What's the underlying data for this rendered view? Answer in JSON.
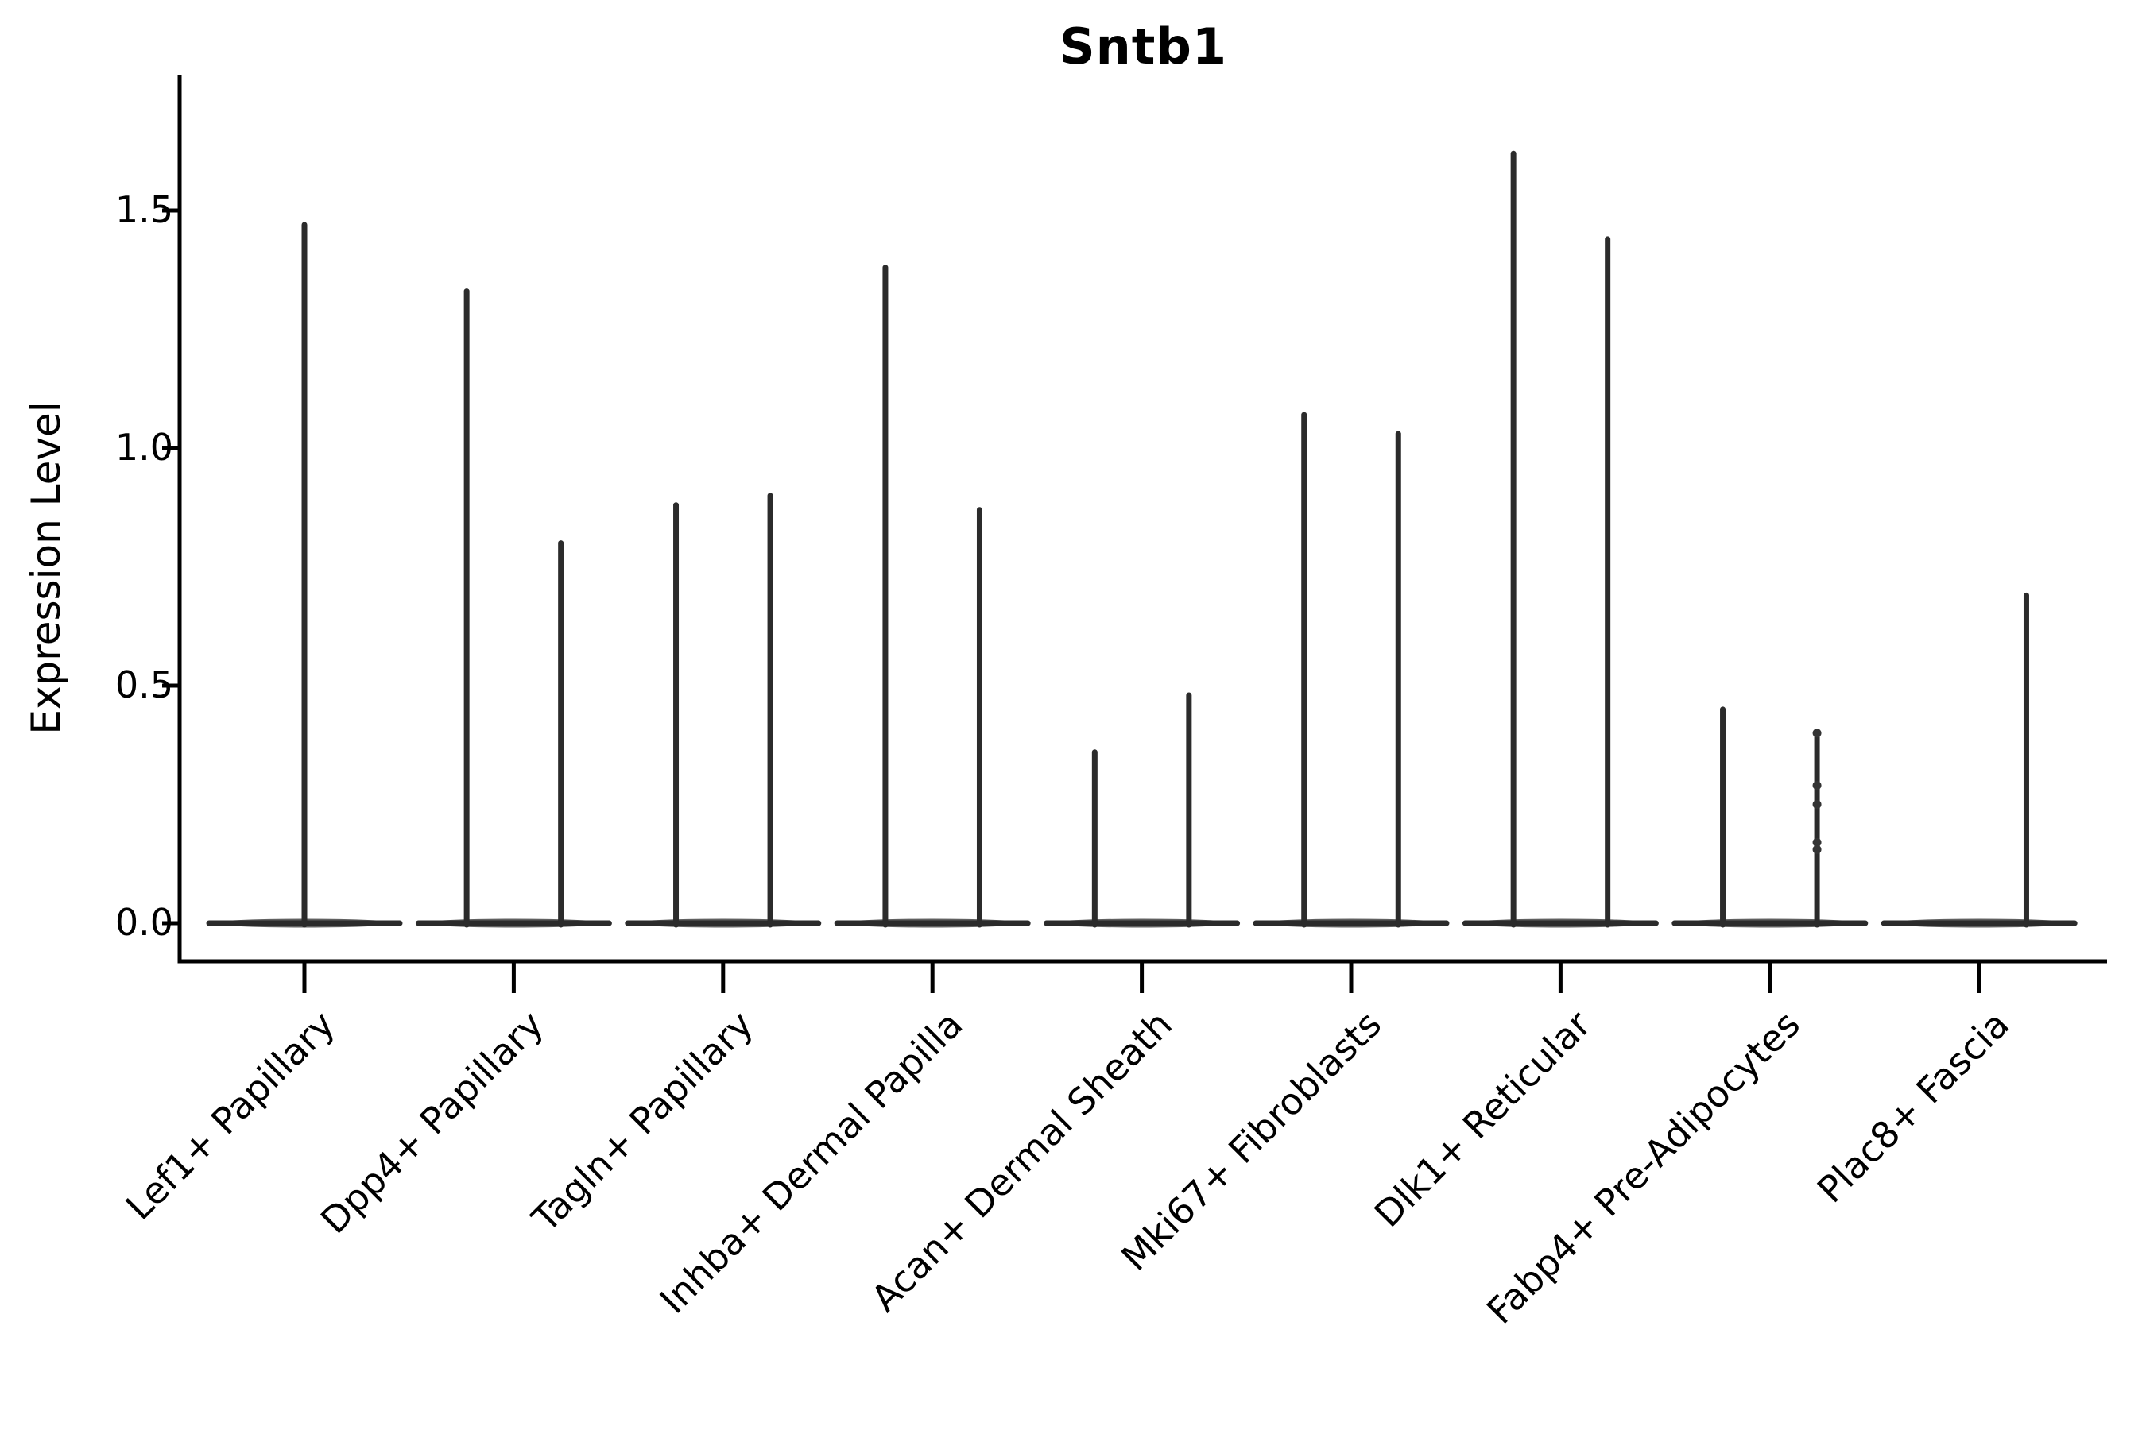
{
  "colors": {
    "violin": "#2b2b2b",
    "axis": "#000000",
    "text": "#000000",
    "background": "#ffffff"
  },
  "chart_data": {
    "type": "violin",
    "title": "Sntb1",
    "xlabel": "",
    "ylabel": "Expression Level",
    "grid": false,
    "legend": "none",
    "ylim": [
      -0.08,
      1.78
    ],
    "yticks": [
      {
        "label": "0.0",
        "value": 0.0
      },
      {
        "label": "0.5",
        "value": 0.5
      },
      {
        "label": "1.0",
        "value": 1.0
      },
      {
        "label": "1.5",
        "value": 1.5
      }
    ],
    "categories": [
      {
        "label": "Lef1+ Papillary",
        "violins": [
          {
            "offset": 0,
            "max": 1.47
          }
        ]
      },
      {
        "label": "Dpp4+ Papillary",
        "violins": [
          {
            "offset": -0.225,
            "max": 1.33
          },
          {
            "offset": 0.225,
            "max": 0.8
          }
        ]
      },
      {
        "label": "Tagln+ Papillary",
        "violins": [
          {
            "offset": -0.225,
            "max": 0.88
          },
          {
            "offset": 0.225,
            "max": 0.9
          }
        ]
      },
      {
        "label": "Inhba+ Dermal Papilla",
        "violins": [
          {
            "offset": -0.225,
            "max": 1.38
          },
          {
            "offset": 0.225,
            "max": 0.87
          }
        ]
      },
      {
        "label": "Acan+ Dermal Sheath",
        "violins": [
          {
            "offset": -0.225,
            "max": 0.36
          },
          {
            "offset": 0.225,
            "max": 0.48
          }
        ]
      },
      {
        "label": "Mki67+ Fibroblasts",
        "violins": [
          {
            "offset": -0.225,
            "max": 1.07
          },
          {
            "offset": 0.225,
            "max": 1.03
          }
        ]
      },
      {
        "label": "Dlk1+ Reticular",
        "violins": [
          {
            "offset": -0.225,
            "max": 1.62
          },
          {
            "offset": 0.225,
            "max": 1.44
          }
        ]
      },
      {
        "label": "Fabp4+ Pre-Adipocytes",
        "violins": [
          {
            "offset": -0.225,
            "max": 0.45
          },
          {
            "offset": 0.225,
            "max": 0.4,
            "jitter": [
              0.4,
              0.29,
              0.25,
              0.17,
              0.155
            ]
          }
        ]
      },
      {
        "label": "Plac8+ Fascia",
        "violins": [
          {
            "offset": 0.225,
            "max": 0.69
          }
        ]
      }
    ]
  }
}
